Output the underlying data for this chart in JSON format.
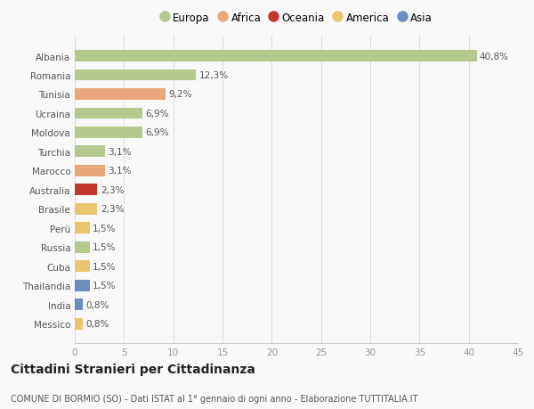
{
  "categories": [
    "Albania",
    "Romania",
    "Tunisia",
    "Ucraina",
    "Moldova",
    "Turchia",
    "Marocco",
    "Australia",
    "Brasile",
    "Perù",
    "Russia",
    "Cuba",
    "Thailandia",
    "India",
    "Messico"
  ],
  "values": [
    40.8,
    12.3,
    9.2,
    6.9,
    6.9,
    3.1,
    3.1,
    2.3,
    2.3,
    1.5,
    1.5,
    1.5,
    1.5,
    0.8,
    0.8
  ],
  "labels": [
    "40,8%",
    "12,3%",
    "9,2%",
    "6,9%",
    "6,9%",
    "3,1%",
    "3,1%",
    "2,3%",
    "2,3%",
    "1,5%",
    "1,5%",
    "1,5%",
    "1,5%",
    "0,8%",
    "0,8%"
  ],
  "colors": [
    "#b5c98e",
    "#b5c98e",
    "#e8a87c",
    "#b5c98e",
    "#b5c98e",
    "#b5c98e",
    "#e8a87c",
    "#c0392b",
    "#e8c56e",
    "#e8c56e",
    "#b5c98e",
    "#e8c56e",
    "#6b8cbf",
    "#6b8cbf",
    "#e8c56e"
  ],
  "legend_entries": [
    {
      "label": "Europa",
      "color": "#b5c98e"
    },
    {
      "label": "Africa",
      "color": "#e8a87c"
    },
    {
      "label": "Oceania",
      "color": "#c0392b"
    },
    {
      "label": "America",
      "color": "#e8c56e"
    },
    {
      "label": "Asia",
      "color": "#6b8cbf"
    }
  ],
  "xlim": [
    0,
    45
  ],
  "xticks": [
    0,
    5,
    10,
    15,
    20,
    25,
    30,
    35,
    40,
    45
  ],
  "title": "Cittadini Stranieri per Cittadinanza",
  "subtitle": "COMUNE DI BORMIO (SO) - Dati ISTAT al 1° gennaio di ogni anno - Elaborazione TUTTITALIA.IT",
  "background_color": "#f9f9f9",
  "bar_height": 0.6,
  "label_fontsize": 7.5,
  "tick_fontsize": 7.5,
  "ytick_fontsize": 7.5,
  "title_fontsize": 10,
  "subtitle_fontsize": 7,
  "legend_fontsize": 8.5
}
